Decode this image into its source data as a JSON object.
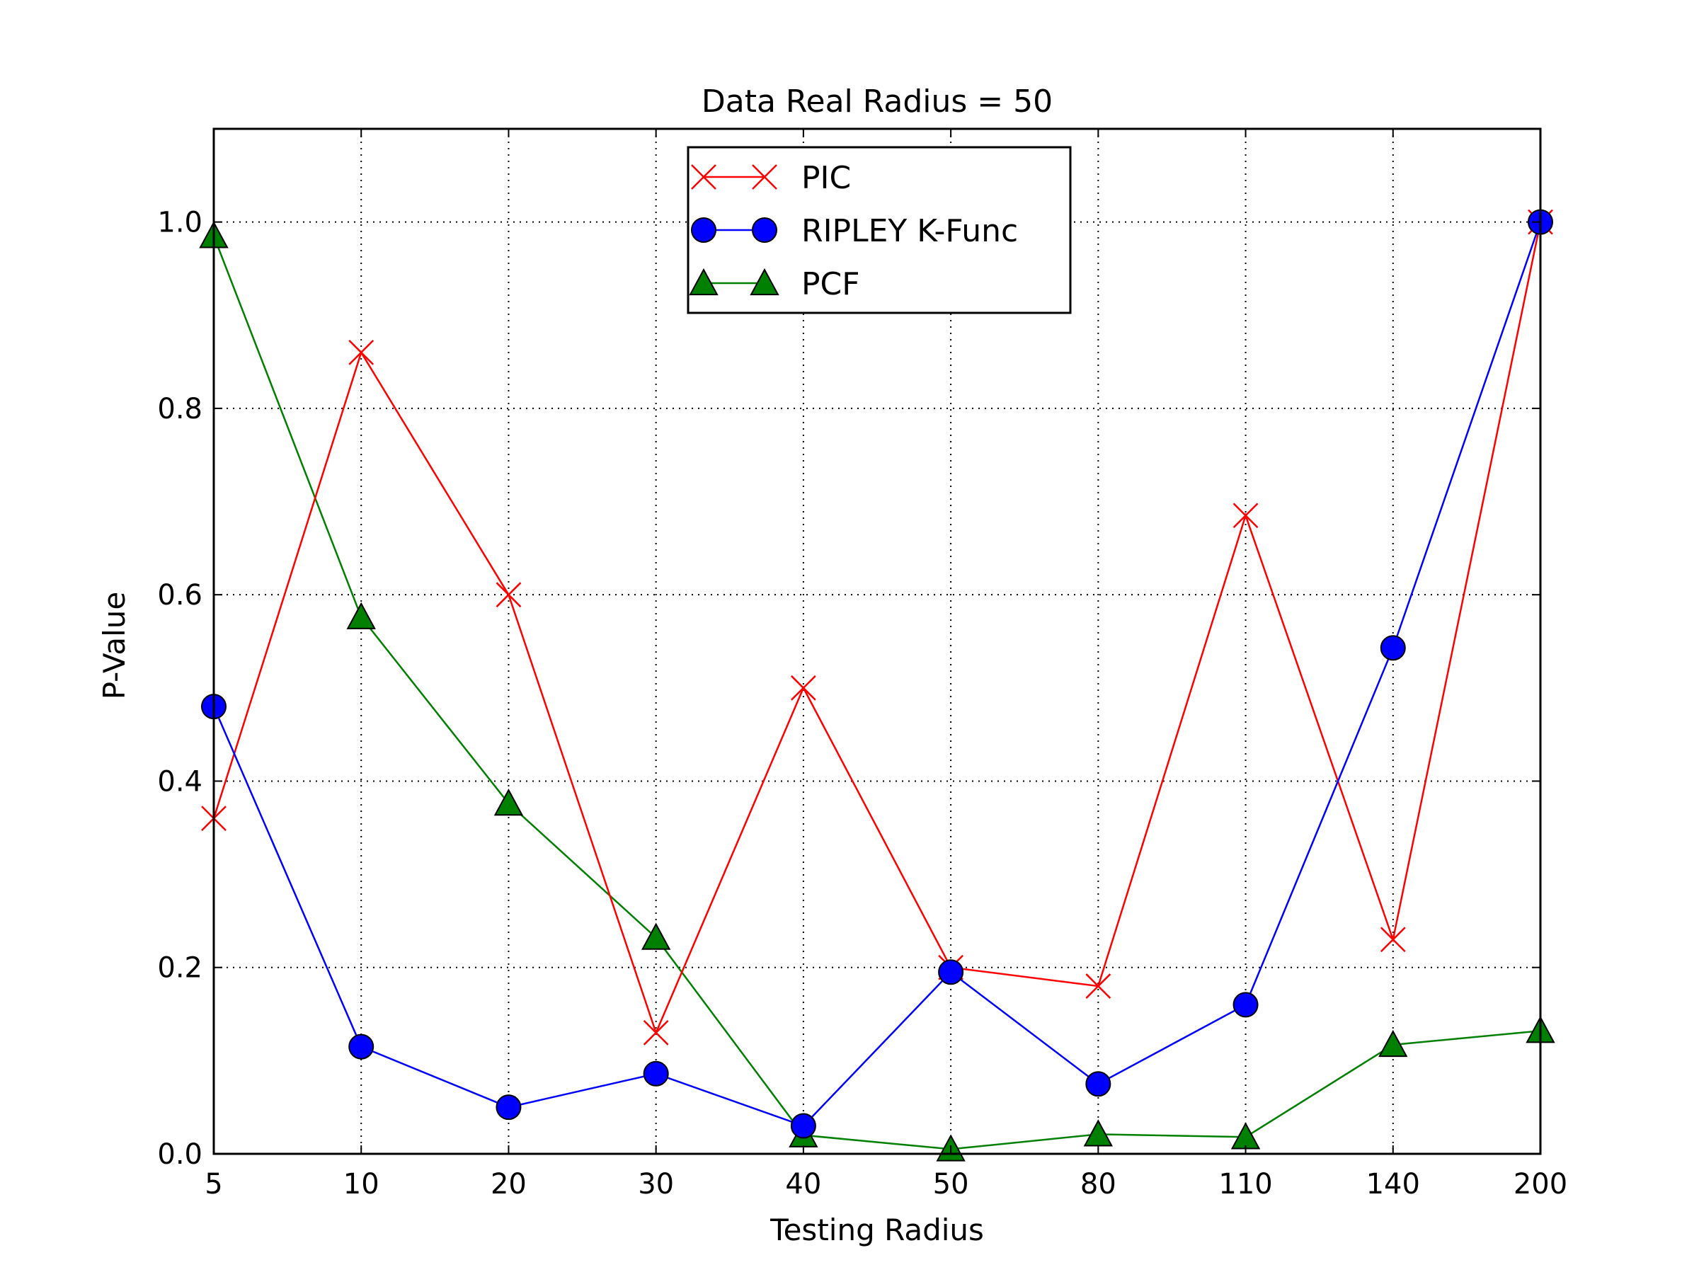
{
  "chart_data": {
    "type": "line",
    "title": "Data Real Radius = 50",
    "xlabel": "Testing Radius",
    "ylabel": "P-Value",
    "categories": [
      "5",
      "10",
      "20",
      "30",
      "40",
      "50",
      "80",
      "110",
      "140",
      "200"
    ],
    "ylim": [
      0,
      1.1
    ],
    "yticks": [
      "0.0",
      "0.2",
      "0.4",
      "0.6",
      "0.8",
      "1.0"
    ],
    "grid": true,
    "legend_position": "upper-center",
    "series": [
      {
        "name": "PIC",
        "color": "#ff0000",
        "marker": "x",
        "values": [
          0.36,
          0.86,
          0.6,
          0.13,
          0.5,
          0.2,
          0.18,
          0.685,
          0.23,
          1.0
        ]
      },
      {
        "name": "RIPLEY K-Func",
        "color": "#0000ff",
        "marker": "circle",
        "values": [
          0.48,
          0.115,
          0.05,
          0.086,
          0.03,
          0.195,
          0.075,
          0.16,
          0.543,
          1.0
        ]
      },
      {
        "name": "PCF",
        "color": "#008000",
        "marker": "triangle",
        "values": [
          0.985,
          0.576,
          0.376,
          0.232,
          0.02,
          0.005,
          0.021,
          0.018,
          0.117,
          0.132
        ]
      }
    ]
  }
}
